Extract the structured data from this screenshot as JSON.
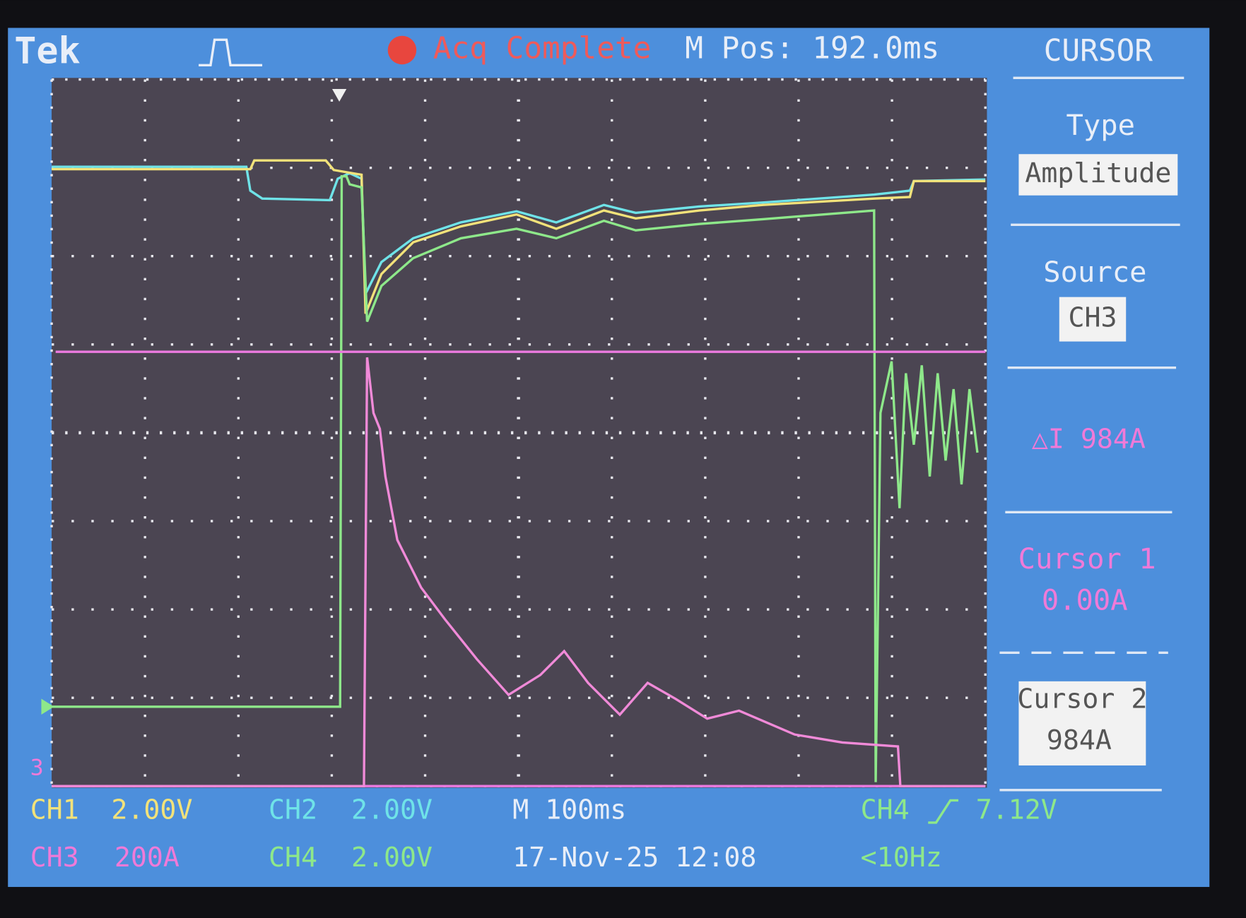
{
  "header": {
    "brand": "Tek",
    "status": "Acq Complete",
    "position": "M Pos: 192.0ms",
    "menu_title": "CURSOR"
  },
  "menu": {
    "type_label": "Type",
    "type_value": "Amplitude",
    "source_label": "Source",
    "source_value": "CH3",
    "delta": "△I 984A",
    "cursor1_label": "Cursor 1",
    "cursor1_value": "0.00A",
    "cursor2_label": "Cursor 2",
    "cursor2_value": "984A"
  },
  "footer": {
    "ch1": "CH1",
    "ch1_scale": "2.00V",
    "ch2": "CH2",
    "ch2_scale": "2.00V",
    "ch3": "CH3",
    "ch3_scale": "200A",
    "ch4": "CH4",
    "ch4_scale": "2.00V",
    "timebase": "M 100ms",
    "datetime": "17-Nov-25 12:08",
    "trigger_source": "CH4",
    "trigger_level": "7.12V",
    "trigger_freq": "<10Hz"
  },
  "markers": {
    "ch3": "3"
  }
}
